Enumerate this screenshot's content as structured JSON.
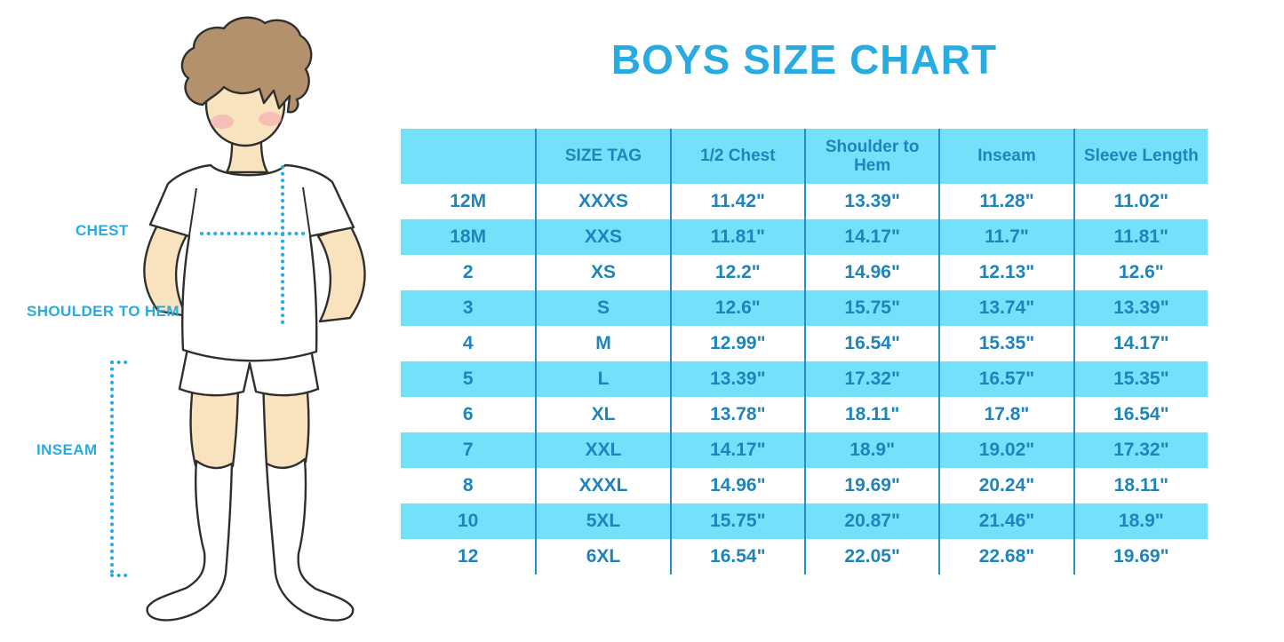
{
  "title": "BOYS SIZE CHART",
  "figure": {
    "labels": {
      "chest": "CHEST",
      "shoulder_to_hem": "SHOULDER TO HEM",
      "inseam": "INSEAM"
    }
  },
  "chart_data": {
    "type": "table",
    "title": "BOYS SIZE CHART",
    "columns": [
      "",
      "SIZE TAG",
      "1/2 Chest",
      "Shoulder to Hem",
      "Inseam",
      "Sleeve Length"
    ],
    "rows": [
      [
        "12M",
        "XXXS",
        "11.42\"",
        "13.39\"",
        "11.28\"",
        "11.02\""
      ],
      [
        "18M",
        "XXS",
        "11.81\"",
        "14.17\"",
        "11.7\"",
        "11.81\""
      ],
      [
        "2",
        "XS",
        "12.2\"",
        "14.96\"",
        "12.13\"",
        "12.6\""
      ],
      [
        "3",
        "S",
        "12.6\"",
        "15.75\"",
        "13.74\"",
        "13.39\""
      ],
      [
        "4",
        "M",
        "12.99\"",
        "16.54\"",
        "15.35\"",
        "14.17\""
      ],
      [
        "5",
        "L",
        "13.39\"",
        "17.32\"",
        "16.57\"",
        "15.35\""
      ],
      [
        "6",
        "XL",
        "13.78\"",
        "18.11\"",
        "17.8\"",
        "16.54\""
      ],
      [
        "7",
        "XXL",
        "14.17\"",
        "18.9\"",
        "19.02\"",
        "17.32\""
      ],
      [
        "8",
        "XXXL",
        "14.96\"",
        "19.69\"",
        "20.24\"",
        "18.11\""
      ],
      [
        "10",
        "5XL",
        "15.75\"",
        "20.87\"",
        "21.46\"",
        "18.9\""
      ],
      [
        "12",
        "6XL",
        "16.54\"",
        "22.05\"",
        "22.68\"",
        "19.69\""
      ]
    ],
    "row_shading": "header and alternate rows (18M, 3, 5, 7, 10) cyan; others white",
    "units": "inches"
  },
  "colors": {
    "accent": "#29ABE2",
    "table-band": "#74E1FA",
    "table-line": "#2490C6",
    "table-text": "#1F84BB",
    "skin": "#F8E3BE",
    "hair": "#B2916C",
    "cheek": "#F2A3B3",
    "outline": "#2F2F2F"
  }
}
